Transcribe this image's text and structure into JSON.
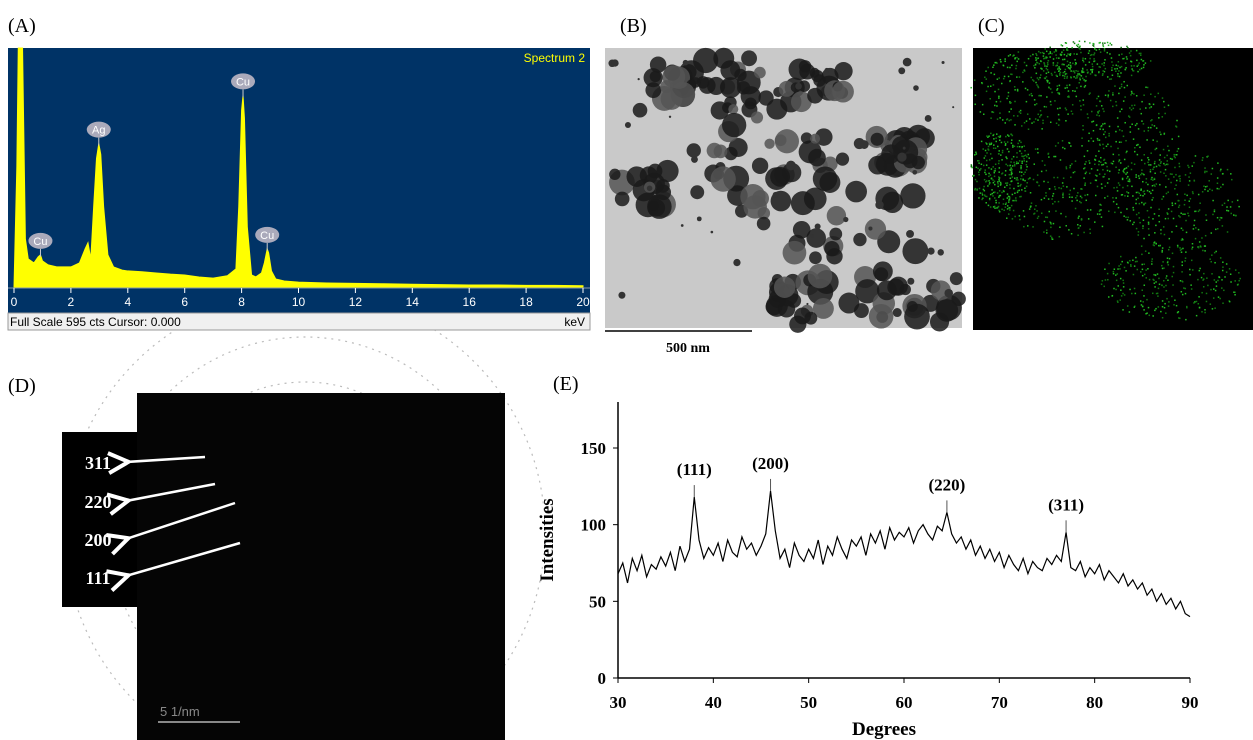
{
  "panel_labels": [
    "(A)",
    "(B)",
    "(C)",
    "(D)",
    "(E)"
  ],
  "tem": {
    "scale_bar": "500 nm"
  },
  "saed": {
    "scale_bar": "5 1/nm",
    "rings": [
      "311",
      "220",
      "200",
      "111"
    ]
  },
  "chart_data": [
    {
      "type": "area",
      "title": "Spectrum 2",
      "subtitle": "Full Scale 595 cts Cursor: 0.000",
      "x_label": "keV",
      "color": "#ffff00",
      "background": "#003366",
      "x": [
        0,
        0.1,
        0.15,
        0.2,
        0.25,
        0.3,
        0.4,
        0.5,
        0.7,
        0.85,
        0.93,
        1.0,
        1.2,
        1.5,
        2.0,
        2.3,
        2.5,
        2.6,
        2.7,
        2.8,
        2.9,
        2.98,
        3.05,
        3.15,
        3.3,
        3.5,
        3.8,
        4.0,
        4.5,
        5,
        5.5,
        6,
        6.5,
        7,
        7.5,
        7.8,
        7.9,
        8.0,
        8.05,
        8.1,
        8.2,
        8.35,
        8.5,
        8.7,
        8.8,
        8.9,
        8.95,
        9.05,
        9.2,
        9.5,
        10,
        11,
        12,
        13,
        14,
        15,
        16,
        17,
        18,
        19,
        20
      ],
      "values": [
        0,
        300,
        595,
        595,
        595,
        595,
        120,
        70,
        60,
        75,
        80,
        65,
        55,
        50,
        50,
        60,
        95,
        110,
        70,
        200,
        320,
        357,
        330,
        200,
        80,
        50,
        42,
        40,
        38,
        35,
        32,
        30,
        25,
        22,
        28,
        45,
        200,
        440,
        477,
        420,
        150,
        30,
        25,
        35,
        60,
        95,
        85,
        40,
        20,
        15,
        12,
        10,
        9,
        8,
        7,
        6,
        5,
        5,
        4,
        4,
        3
      ],
      "xlim": [
        0,
        20
      ],
      "xticks": [
        0,
        2,
        4,
        6,
        8,
        10,
        12,
        14,
        16,
        18,
        20
      ],
      "ylim": [
        0,
        595
      ],
      "annotations": [
        {
          "x": 0.93,
          "label": "Cu"
        },
        {
          "x": 2.98,
          "label": "Ag"
        },
        {
          "x": 8.05,
          "label": "Cu"
        },
        {
          "x": 8.9,
          "label": "Cu"
        }
      ]
    },
    {
      "type": "line",
      "x_label": "Degrees",
      "y_label": "Intensities",
      "color": "#000000",
      "x": [
        30,
        30.5,
        31,
        31.5,
        32,
        32.5,
        33,
        33.5,
        34,
        34.5,
        35,
        35.5,
        36,
        36.5,
        37,
        37.5,
        38,
        38.5,
        39,
        39.5,
        40,
        40.5,
        41,
        41.5,
        42,
        42.5,
        43,
        43.5,
        44,
        44.5,
        45,
        45.5,
        46,
        46.5,
        47,
        47.5,
        48,
        48.5,
        49,
        49.5,
        50,
        50.5,
        51,
        51.5,
        52,
        52.5,
        53,
        53.5,
        54,
        54.5,
        55,
        55.5,
        56,
        56.5,
        57,
        57.5,
        58,
        58.5,
        59,
        59.5,
        60,
        60.5,
        61,
        61.5,
        62,
        62.5,
        63,
        63.5,
        64,
        64.5,
        65,
        65.5,
        66,
        66.5,
        67,
        67.5,
        68,
        68.5,
        69,
        69.5,
        70,
        70.5,
        71,
        71.5,
        72,
        72.5,
        73,
        73.5,
        74,
        74.5,
        75,
        75.5,
        76,
        76.5,
        77,
        77.5,
        78,
        78.5,
        79,
        79.5,
        80,
        80.5,
        81,
        81.5,
        82,
        82.5,
        83,
        83.5,
        84,
        84.5,
        85,
        85.5,
        86,
        86.5,
        87,
        87.5,
        88,
        88.5,
        89,
        89.5,
        90
      ],
      "values": [
        68,
        75,
        62,
        78,
        70,
        80,
        66,
        74,
        71,
        79,
        73,
        82,
        70,
        86,
        76,
        84,
        118,
        90,
        78,
        85,
        80,
        88,
        76,
        90,
        82,
        79,
        92,
        84,
        88,
        80,
        86,
        94,
        122,
        96,
        78,
        84,
        72,
        88,
        80,
        76,
        84,
        78,
        90,
        74,
        86,
        80,
        92,
        84,
        78,
        90,
        86,
        92,
        80,
        94,
        88,
        96,
        84,
        98,
        90,
        95,
        92,
        98,
        88,
        96,
        100,
        94,
        90,
        99,
        96,
        108,
        94,
        88,
        92,
        84,
        90,
        80,
        86,
        78,
        84,
        76,
        82,
        72,
        80,
        74,
        70,
        78,
        68,
        76,
        72,
        70,
        78,
        74,
        80,
        76,
        95,
        72,
        70,
        76,
        66,
        72,
        68,
        74,
        64,
        70,
        66,
        62,
        68,
        60,
        64,
        58,
        62,
        54,
        58,
        50,
        55,
        48,
        52,
        45,
        50,
        42,
        40
      ],
      "xlim": [
        30,
        90
      ],
      "xticks": [
        30,
        40,
        50,
        60,
        70,
        80,
        90
      ],
      "ylim": [
        0,
        180
      ],
      "yticks": [
        0,
        50,
        100,
        150
      ],
      "annotations": [
        {
          "x": 38,
          "label": "(111)"
        },
        {
          "x": 46,
          "label": "(200)"
        },
        {
          "x": 64.5,
          "label": "(220)"
        },
        {
          "x": 77,
          "label": "(311)"
        }
      ]
    }
  ]
}
